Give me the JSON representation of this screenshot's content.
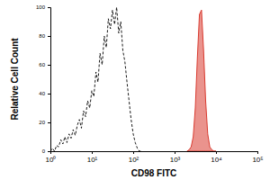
{
  "chart_data": {
    "type": "line",
    "x_label": "CD98 FITC",
    "y_label": "Relative Cell Count",
    "log": "x",
    "grid": false,
    "xlim": [
      1,
      100000
    ],
    "xticks": [
      {
        "value": 1,
        "label": "10⁰"
      },
      {
        "value": 10,
        "label": "10¹"
      },
      {
        "value": 100,
        "label": "10²"
      },
      {
        "value": 1000,
        "label": "10³"
      },
      {
        "value": 10000,
        "label": "10⁴"
      },
      {
        "value": 100000,
        "label": "10⁵"
      }
    ],
    "ylim": [
      0,
      100
    ],
    "yticks": [
      0,
      20,
      40,
      60,
      80,
      100
    ],
    "x": [
      1,
      1.12,
      1.26,
      1.41,
      1.58,
      1.78,
      2.0,
      2.24,
      2.51,
      2.82,
      3.16,
      3.55,
      3.98,
      4.47,
      5.01,
      5.62,
      6.31,
      7.08,
      7.94,
      8.91,
      10,
      11.2,
      12.6,
      14.1,
      15.8,
      17.8,
      20,
      22.4,
      25.1,
      28.2,
      31.6,
      35.5,
      39.8,
      44.7,
      50.1,
      56.2,
      63.1,
      70.8,
      79.4,
      89.1,
      100,
      112,
      126,
      141,
      158,
      1995,
      2239,
      2512,
      2818,
      3162,
      3548,
      3981,
      4467,
      5012,
      5623,
      6310,
      7079,
      7943,
      8913,
      10000
    ],
    "series": [
      {
        "color": "#000000",
        "line_style": "dashed",
        "type": "line",
        "values": [
          0,
          2,
          0,
          4,
          3,
          8,
          5,
          10,
          6,
          12,
          9,
          15,
          11,
          18,
          22,
          16,
          28,
          24,
          35,
          30,
          42,
          38,
          55,
          48,
          68,
          60,
          80,
          72,
          92,
          85,
          98,
          88,
          100,
          82,
          90,
          70,
          62,
          48,
          35,
          22,
          12,
          6,
          2,
          0,
          0,
          null,
          null,
          null,
          null,
          null,
          null,
          null,
          null,
          null,
          null,
          null,
          null,
          null,
          null,
          null
        ]
      },
      {
        "color": "#d93a2f",
        "line_style": "solid",
        "type": "area",
        "values": [
          null,
          null,
          null,
          null,
          null,
          null,
          null,
          null,
          null,
          null,
          null,
          null,
          null,
          null,
          null,
          null,
          null,
          null,
          null,
          null,
          null,
          null,
          null,
          null,
          null,
          null,
          null,
          null,
          null,
          null,
          null,
          null,
          null,
          null,
          null,
          null,
          null,
          null,
          null,
          null,
          null,
          null,
          null,
          null,
          null,
          0,
          1,
          3,
          10,
          30,
          65,
          95,
          98,
          70,
          35,
          12,
          3,
          1,
          0,
          0
        ]
      }
    ]
  }
}
